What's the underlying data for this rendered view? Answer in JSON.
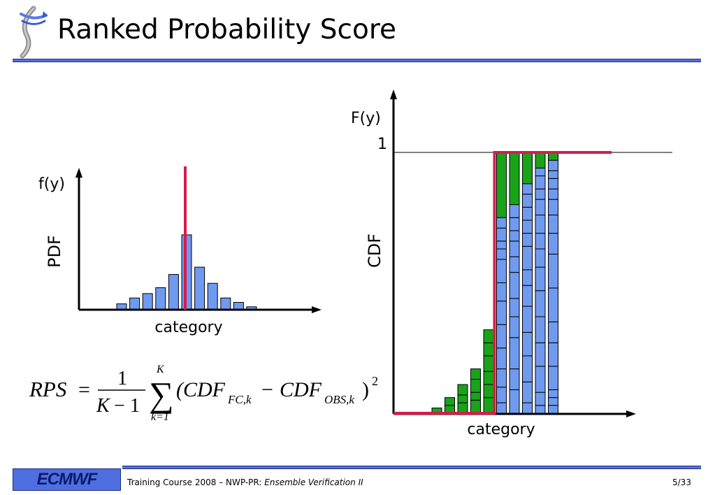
{
  "slide": {
    "title": "Ranked Probability Score",
    "footer": {
      "logo": "ECMWF",
      "course": "Training Course 2008 – NWP-PR: ",
      "topic": "Ensemble Verification II",
      "page": "5/33"
    }
  },
  "pdf_panel": {
    "ylabel_top": "f(y)",
    "ylabel_side": "PDF",
    "xlabel": "category"
  },
  "cdf_panel": {
    "ylabel_top": "F(y)",
    "ytick_one": "1",
    "ylabel_side": "CDF",
    "xlabel": "category"
  },
  "formula": {
    "lhs": "RPS",
    "eq": "=",
    "num": "1",
    "den_k": "K",
    "den_minus": "−",
    "den_one": "1",
    "sum_upper": "K",
    "sum_lower": "k=1",
    "open": "(CDF",
    "fc_sub": "FC,k",
    "minus": "−",
    "cdf2": "CDF",
    "obs_sub": "OBS,k",
    "close": ")",
    "power": "2"
  },
  "colors": {
    "bar_blue": "#6f9af0",
    "bar_green": "#19a319",
    "obs_red": "#d81b4a",
    "rule_blue": "#5b6fd6"
  },
  "chart_data": [
    {
      "type": "bar",
      "name": "pdf",
      "values": [
        0.04,
        0.08,
        0.11,
        0.15,
        0.24,
        0.51,
        0.29,
        0.18,
        0.08,
        0.05,
        0.02
      ],
      "observation_category_index": 5
    },
    {
      "type": "bar",
      "name": "cdf",
      "ylim": [
        0,
        1
      ],
      "forecast_cdf": [
        0.02,
        0.06,
        0.13,
        0.22,
        0.36,
        0.65,
        0.8,
        0.94,
        1.0,
        1.0,
        1.0
      ],
      "observed_cdf": [
        0,
        0,
        0,
        0,
        0,
        1,
        1,
        1,
        1,
        1,
        1
      ],
      "member_stacks": [
        [
          0.02
        ],
        [
          0.03,
          0.03
        ],
        [
          0.04,
          0.03,
          0.04
        ],
        [
          0.05,
          0.03,
          0.05,
          0.04
        ],
        [
          0.06,
          0.05,
          0.05,
          0.06,
          0.05,
          0.05
        ],
        [
          0.04,
          0.06,
          0.07,
          0.08,
          0.09,
          0.09,
          0.07,
          0.09,
          0.04,
          0.03,
          0.05,
          0.04
        ],
        [
          0.09,
          0.08,
          0.12,
          0.08,
          0.07,
          0.1,
          0.06,
          0.06,
          0.04,
          0.05,
          0.05
        ],
        [
          0.04,
          0.08,
          0.1,
          0.09,
          0.1,
          0.08,
          0.06,
          0.09,
          0.05,
          0.05,
          0.05,
          0.05,
          0.04
        ],
        [
          0.03,
          0.05,
          0.1,
          0.09,
          0.1,
          0.1,
          0.09,
          0.07,
          0.06,
          0.07,
          0.06,
          0.04,
          0.05,
          0.03
        ],
        [
          0.03,
          0.03,
          0.03,
          0.09,
          0.09,
          0.08,
          0.13,
          0.13,
          0.08,
          0.07,
          0.06,
          0.04,
          0.04,
          0.03,
          0.04
        ]
      ]
    }
  ]
}
